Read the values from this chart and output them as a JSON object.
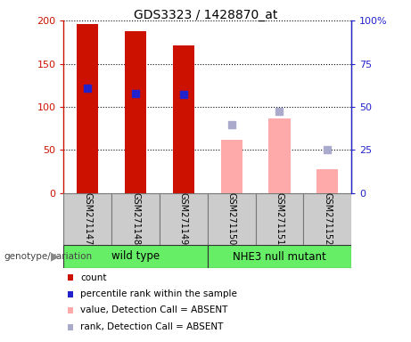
{
  "title": "GDS3323 / 1428870_at",
  "samples": [
    "GSM271147",
    "GSM271148",
    "GSM271149",
    "GSM271150",
    "GSM271151",
    "GSM271152"
  ],
  "count_values": [
    196,
    188,
    171,
    null,
    null,
    null
  ],
  "count_absent": [
    null,
    null,
    null,
    62,
    87,
    28
  ],
  "rank_values": [
    122,
    115,
    114,
    null,
    null,
    null
  ],
  "rank_absent": [
    null,
    null,
    null,
    79,
    95,
    50
  ],
  "bar_color_present": "#cc1100",
  "bar_color_absent": "#ffaaaa",
  "rank_color_present": "#2222cc",
  "rank_color_absent": "#aaaacc",
  "ylim_left": [
    0,
    200
  ],
  "ylim_right": [
    0,
    100
  ],
  "yticks_left": [
    0,
    50,
    100,
    150,
    200
  ],
  "ytick_labels_left": [
    "0",
    "50",
    "100",
    "150",
    "200"
  ],
  "yticks_right": [
    0,
    25,
    50,
    75,
    100
  ],
  "ytick_labels_right": [
    "0",
    "25",
    "50",
    "75",
    "100%"
  ],
  "bar_width": 0.45,
  "rank_marker_size": 6,
  "legend_items": [
    {
      "label": "count",
      "color": "#cc1100"
    },
    {
      "label": "percentile rank within the sample",
      "color": "#2222cc"
    },
    {
      "label": "value, Detection Call = ABSENT",
      "color": "#ffaaaa"
    },
    {
      "label": "rank, Detection Call = ABSENT",
      "color": "#aaaacc"
    }
  ],
  "wt_label": "wild type",
  "nhe_label": "NHE3 null mutant",
  "genotype_label": "genotype/variation",
  "group_color": "#66ee66",
  "sample_box_color": "#cccccc"
}
